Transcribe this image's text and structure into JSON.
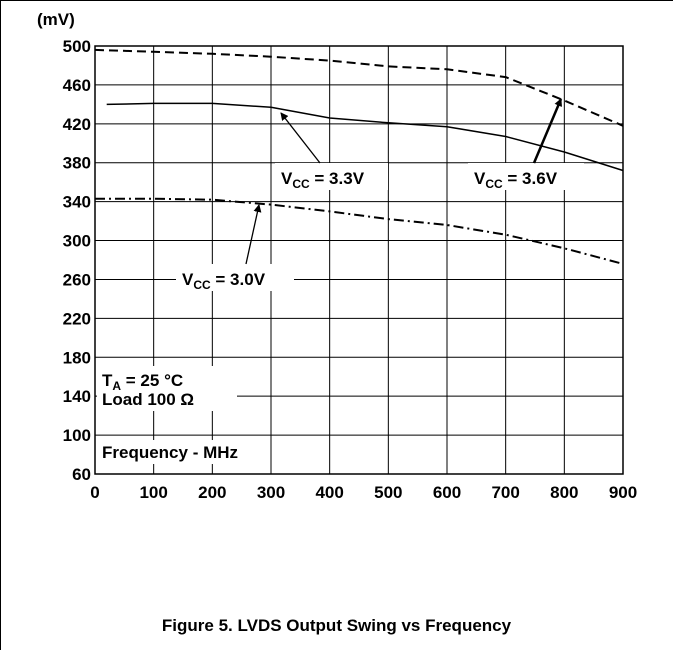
{
  "chart_data": {
    "type": "line",
    "ylabel_unit": "(mV)",
    "x_axis_label": "Frequency - MHz",
    "xlim": [
      0,
      900
    ],
    "ylim": [
      60,
      500
    ],
    "x_ticks": [
      0,
      100,
      200,
      300,
      400,
      500,
      600,
      700,
      800,
      900
    ],
    "y_ticks": [
      60,
      100,
      140,
      180,
      220,
      260,
      300,
      340,
      380,
      420,
      460,
      500
    ],
    "grid": true,
    "series": [
      {
        "name": "V_CC = 3.6V",
        "style": "dashed",
        "x": [
          0,
          100,
          200,
          300,
          400,
          500,
          600,
          700,
          800,
          900
        ],
        "y": [
          496,
          494,
          492,
          489,
          485,
          479,
          476,
          468,
          444,
          418
        ]
      },
      {
        "name": "V_CC = 3.3V",
        "style": "solid",
        "x": [
          20,
          100,
          200,
          300,
          400,
          500,
          600,
          700,
          800,
          900
        ],
        "y": [
          440,
          441,
          441,
          437,
          426,
          421,
          417,
          407,
          391,
          372
        ]
      },
      {
        "name": "V_CC = 3.0V",
        "style": "dash-dot",
        "x": [
          0,
          100,
          200,
          300,
          400,
          500,
          600,
          700,
          800,
          900
        ],
        "y": [
          343,
          343,
          342,
          337,
          330,
          322,
          316,
          306,
          292,
          276
        ]
      }
    ],
    "annotations": [
      {
        "id": "vcc33",
        "main": "V",
        "sub": "CC",
        "rest": " = 3.3V"
      },
      {
        "id": "vcc36",
        "main": "V",
        "sub": "CC",
        "rest": " = 3.6V"
      },
      {
        "id": "vcc30",
        "main": "V",
        "sub": "CC",
        "rest": " = 3.0V"
      }
    ],
    "conditions": {
      "temp_main": "T",
      "temp_sub": "A",
      "temp_rest": " = 25 °C",
      "load": "Load 100 Ω"
    },
    "caption": "Figure 5. LVDS Output Swing vs Frequency"
  }
}
